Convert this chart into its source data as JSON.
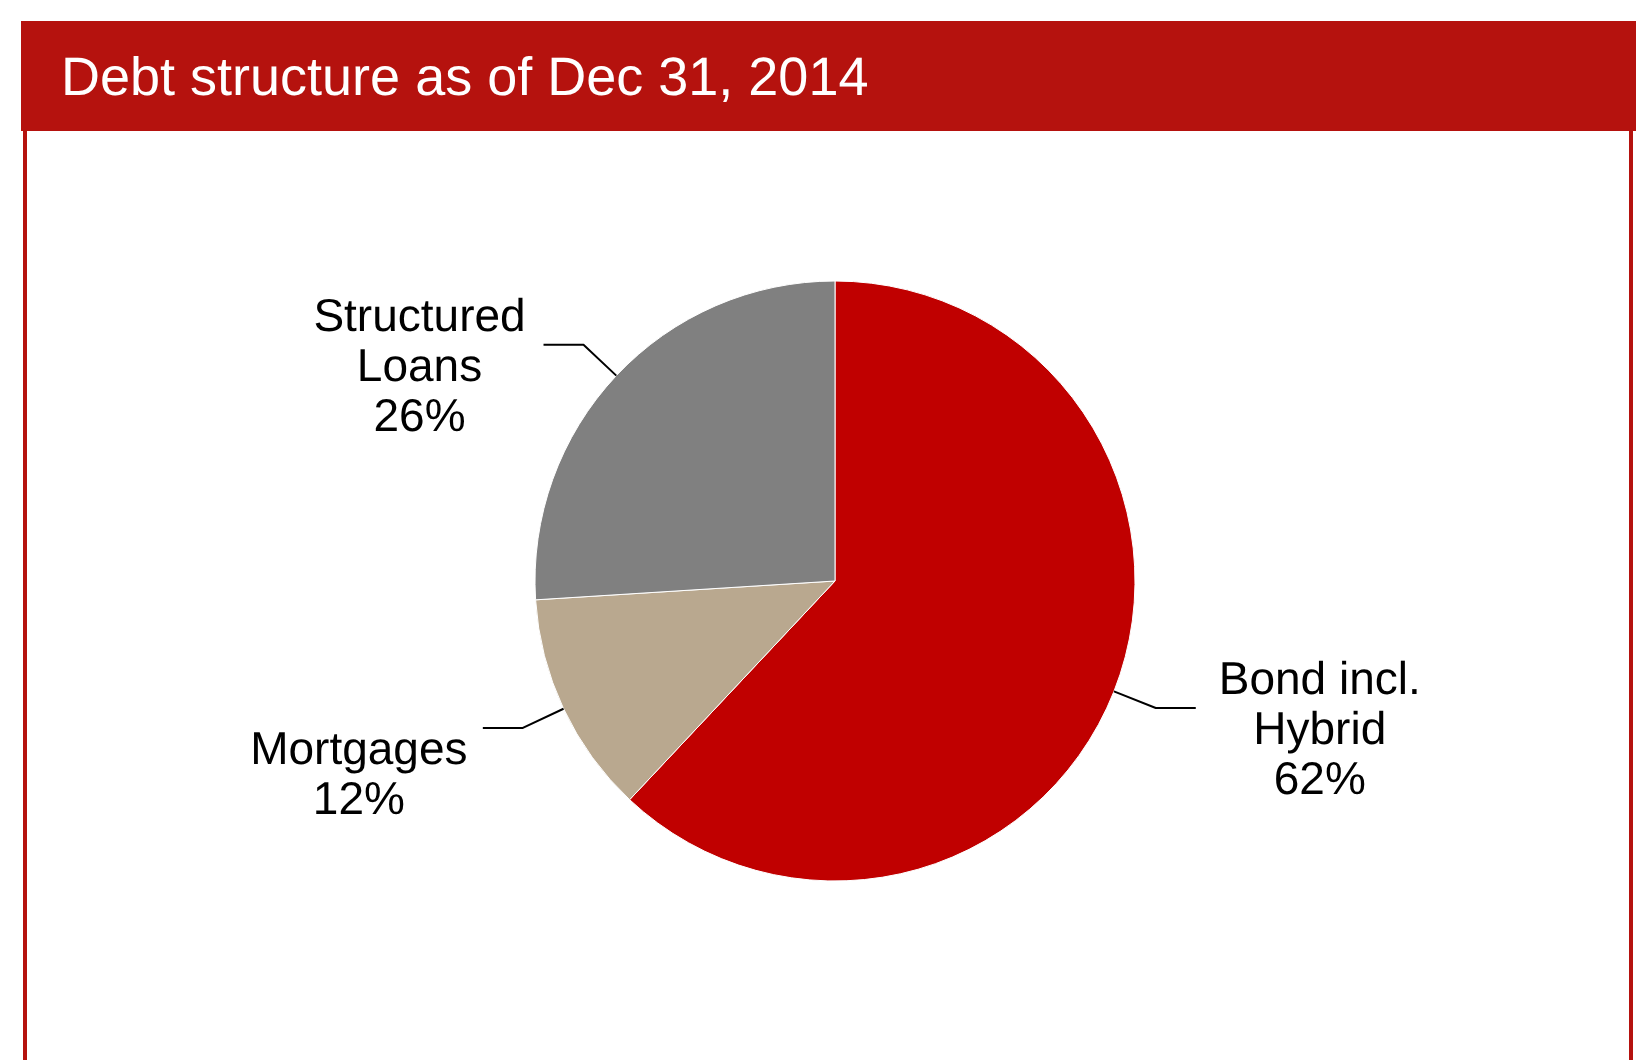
{
  "chart_data": {
    "type": "pie",
    "title": "Debt structure as of Dec 31, 2014",
    "categories": [
      "Bond incl. Hybrid",
      "Mortgages",
      "Structured Loans"
    ],
    "values": [
      62,
      12,
      26
    ],
    "colors": [
      "#c00000",
      "#b9a88f",
      "#808080"
    ],
    "value_labels": [
      "62%",
      "12%",
      "26%"
    ]
  }
}
